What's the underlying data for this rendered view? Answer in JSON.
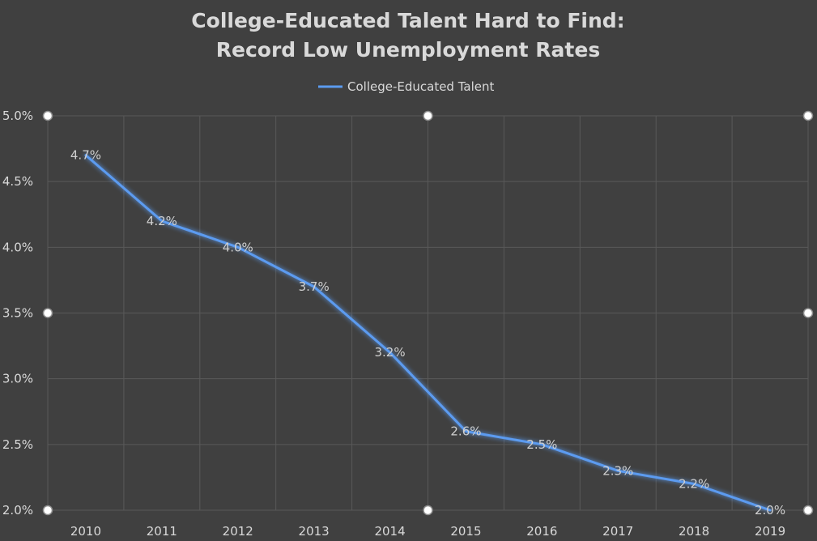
{
  "chart_data": {
    "type": "line",
    "title_lines": [
      "College-Educated Talent Hard to Find:",
      "Record Low Unemployment Rates"
    ],
    "xlabel": "",
    "ylabel": "",
    "categories": [
      "2010",
      "2011",
      "2012",
      "2013",
      "2014",
      "2015",
      "2016",
      "2017",
      "2018",
      "2019"
    ],
    "series": [
      {
        "name": "College-Educated Talent",
        "color": "#5b9bf0",
        "values": [
          4.7,
          4.2,
          4.0,
          3.7,
          3.2,
          2.6,
          2.5,
          2.3,
          2.2,
          2.0
        ],
        "data_labels": [
          "4.7%",
          "4.2%",
          "4.0%",
          "3.7%",
          "3.2%",
          "2.6%",
          "2.5%",
          "2.3%",
          "2.2%",
          "2.0%"
        ]
      }
    ],
    "ylim": [
      2.0,
      5.0
    ],
    "y_ticks": [
      5.0,
      4.5,
      4.0,
      3.5,
      3.0,
      2.5,
      2.0
    ],
    "y_tick_labels": [
      "5.0%",
      "4.5%",
      "4.0%",
      "3.5%",
      "3.0%",
      "2.5%",
      "2.0%"
    ],
    "grid": true,
    "legend_position": "top-center",
    "background_color": "#404040",
    "gridline_color": "#595959",
    "text_color": "#d9d9d9"
  }
}
